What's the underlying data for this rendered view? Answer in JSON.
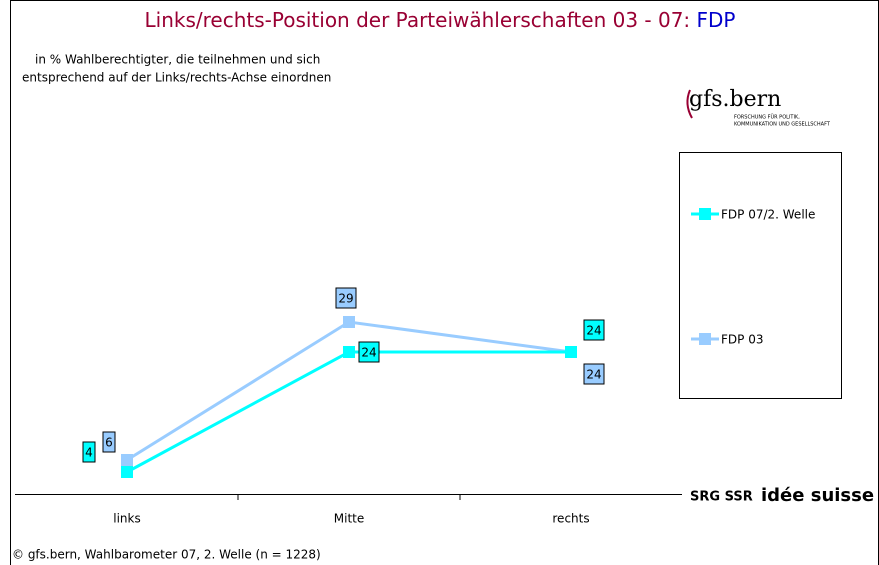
{
  "chart_data": {
    "type": "line",
    "title": "Links/rechts-Position der Parteiwählerschaften 03 - 07: ",
    "title_party": "FDP",
    "subtitle": [
      "in % Wahlberechtigter, die teilnehmen und sich",
      "entsprechend auf der Links/rechts-Achse einordnen"
    ],
    "categories": [
      "links",
      "Mitte",
      "rechts"
    ],
    "series": [
      {
        "name": "FDP 07/2. Welle",
        "color": "#00ffff",
        "values": [
          4,
          24,
          24
        ]
      },
      {
        "name": "FDP 03",
        "color": "#99ccff",
        "values": [
          6,
          29,
          24
        ]
      }
    ],
    "ylim": [
      0,
      80
    ],
    "source": "© gfs.bern, Wahlbarometer 07, 2. Welle (n = 1228)",
    "logo": {
      "name": "gfs.bern",
      "tagline": [
        "FORSCHUNG FÜR POLITIK,",
        "KOMMUNIKATION UND GESELLSCHAFT"
      ]
    },
    "sponsor": {
      "prefix": "SRG SSR",
      "name": "idée suisse"
    }
  }
}
